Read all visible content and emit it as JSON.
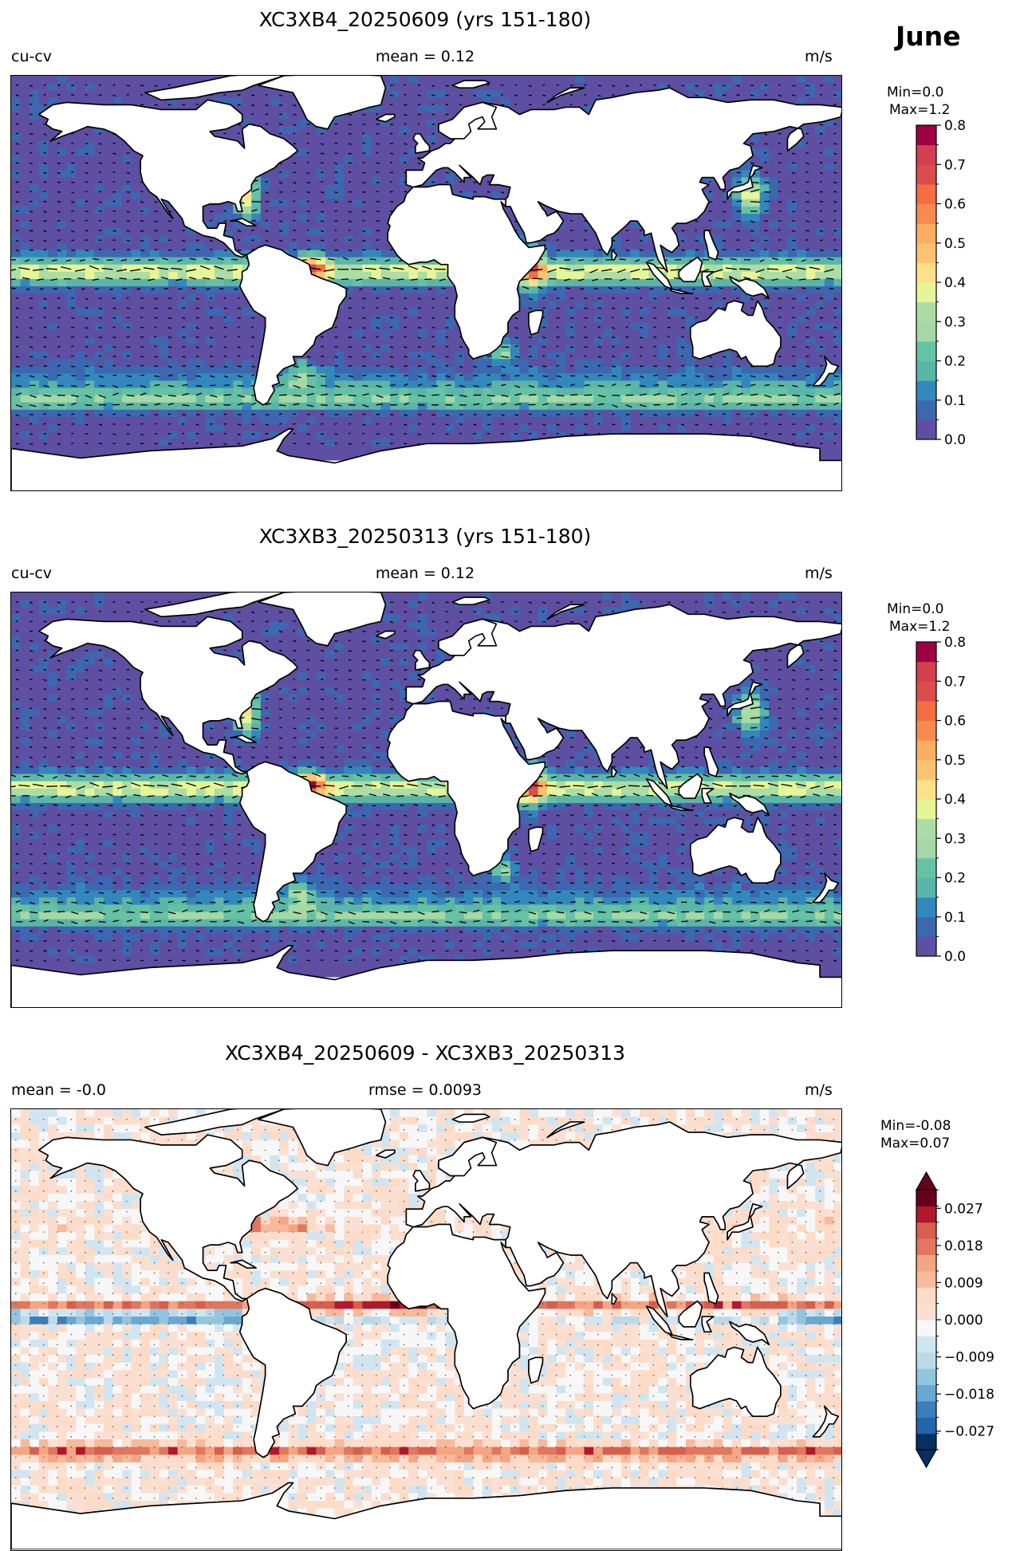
{
  "figure": {
    "month": "June"
  },
  "panels": [
    {
      "title": "XC3XB4_20250609 (yrs 151-180)",
      "left_label": "cu-cv",
      "center_label": "mean = 0.12",
      "right_label": "m/s",
      "colorbar": {
        "range_label_1": "Min=0.0",
        "range_label_2": "Max=1.2",
        "ticks": [
          "0.8",
          "0.7",
          "0.6",
          "0.5",
          "0.4",
          "0.3",
          "0.2",
          "0.1",
          "0.0"
        ]
      }
    },
    {
      "title": "XC3XB3_20250313 (yrs 151-180)",
      "left_label": "cu-cv",
      "center_label": "mean = 0.12",
      "right_label": "m/s",
      "colorbar": {
        "range_label_1": "Min=0.0",
        "range_label_2": "Max=1.2",
        "ticks": [
          "0.8",
          "0.7",
          "0.6",
          "0.5",
          "0.4",
          "0.3",
          "0.2",
          "0.1",
          "0.0"
        ]
      }
    },
    {
      "title": "XC3XB4_20250609 - XC3XB3_20250313",
      "left_label": "mean = -0.0",
      "center_label": "rmse = 0.0093",
      "right_label": "m/s",
      "colorbar": {
        "range_label_1": "Min=-0.08",
        "range_label_2": "Max=0.07",
        "ticks": [
          "0.027",
          "0.018",
          "0.009",
          "0.000",
          "−0.009",
          "−0.018",
          "−0.027"
        ]
      }
    }
  ],
  "colors": {
    "speed_scale": [
      "#5e4fa2",
      "#3d67b0",
      "#3288bd",
      "#5bb5a9",
      "#66c2a5",
      "#a4d8a4",
      "#abdda4",
      "#e6f598",
      "#fee08b",
      "#fdc370",
      "#fdae61",
      "#f88951",
      "#f46d43",
      "#dd4c4c",
      "#d53e4f",
      "#9e0142"
    ],
    "diff_scale": [
      "#053061",
      "#2166ac",
      "#3a7ebb",
      "#6aa7d2",
      "#92c5de",
      "#bcd9ea",
      "#d1e5f0",
      "#f7f7f7",
      "#fbe0d2",
      "#fddbc7",
      "#f9b99b",
      "#f4a582",
      "#e0775f",
      "#d6604d",
      "#b2182b",
      "#67001f"
    ],
    "land": "#ffffff",
    "coast": "#000000"
  }
}
